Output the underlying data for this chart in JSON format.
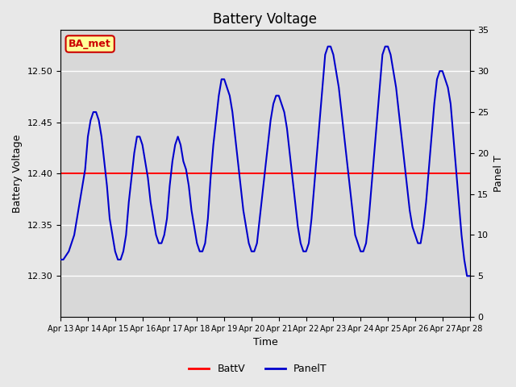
{
  "title": "Battery Voltage",
  "xlabel": "Time",
  "ylabel_left": "Battery Voltage",
  "ylabel_right": "Panel T",
  "ylim_left": [
    12.26,
    12.54
  ],
  "ylim_right": [
    0,
    35
  ],
  "xlim": [
    0,
    15
  ],
  "background_color": "#e8e8e8",
  "plot_bg_color": "#d8d8d8",
  "grid_color": "#ffffff",
  "batt_v_value": 12.4,
  "batt_v_color": "#ff0000",
  "panel_t_color": "#0000cc",
  "x_tick_labels": [
    "Apr 13",
    "Apr 14",
    "Apr 15",
    "Apr 16",
    "Apr 17",
    "Apr 18",
    "Apr 19",
    "Apr 20",
    "Apr 21",
    "Apr 22",
    "Apr 23",
    "Apr 24",
    "Apr 25",
    "Apr 26",
    "Apr 27",
    "Apr 28"
  ],
  "ba_met_bg": "#ffff99",
  "ba_met_border": "#cc0000",
  "ba_met_text": "#cc0000",
  "legend_batt_color": "#ff0000",
  "legend_panel_color": "#0000cc",
  "panel_t_data_x": [
    0,
    0.1,
    0.3,
    0.5,
    0.7,
    0.9,
    1.0,
    1.1,
    1.2,
    1.3,
    1.4,
    1.5,
    1.6,
    1.7,
    1.8,
    1.9,
    2.0,
    2.1,
    2.2,
    2.3,
    2.4,
    2.5,
    2.6,
    2.7,
    2.8,
    2.9,
    3.0,
    3.1,
    3.2,
    3.3,
    3.4,
    3.5,
    3.6,
    3.7,
    3.8,
    3.9,
    4.0,
    4.1,
    4.2,
    4.3,
    4.4,
    4.5,
    4.6,
    4.7,
    4.8,
    4.9,
    5.0,
    5.1,
    5.2,
    5.3,
    5.4,
    5.5,
    5.6,
    5.7,
    5.8,
    5.9,
    6.0,
    6.1,
    6.2,
    6.3,
    6.4,
    6.5,
    6.6,
    6.7,
    6.8,
    6.9,
    7.0,
    7.1,
    7.2,
    7.3,
    7.4,
    7.5,
    7.6,
    7.7,
    7.8,
    7.9,
    8.0,
    8.1,
    8.2,
    8.3,
    8.4,
    8.5,
    8.6,
    8.7,
    8.8,
    8.9,
    9.0,
    9.1,
    9.2,
    9.3,
    9.4,
    9.5,
    9.6,
    9.7,
    9.8,
    9.9,
    10.0,
    10.1,
    10.2,
    10.3,
    10.4,
    10.5,
    10.6,
    10.7,
    10.8,
    10.9,
    11.0,
    11.1,
    11.2,
    11.3,
    11.4,
    11.5,
    11.6,
    11.7,
    11.8,
    11.9,
    12.0,
    12.1,
    12.2,
    12.3,
    12.4,
    12.5,
    12.6,
    12.7,
    12.8,
    12.9,
    13.0,
    13.1,
    13.2,
    13.3,
    13.4,
    13.5,
    13.6,
    13.7,
    13.8,
    13.9,
    14.0,
    14.1,
    14.2,
    14.3,
    14.4,
    14.5,
    14.6,
    14.7,
    14.8,
    14.9,
    15.0
  ],
  "panel_t_data_y": [
    7,
    7,
    8,
    10,
    14,
    18,
    22,
    24,
    25,
    25,
    24,
    22,
    19,
    16,
    12,
    10,
    8,
    7,
    7,
    8,
    10,
    14,
    17,
    20,
    22,
    22,
    21,
    19,
    17,
    14,
    12,
    10,
    9,
    9,
    10,
    12,
    16,
    19,
    21,
    22,
    21,
    19,
    18,
    16,
    13,
    11,
    9,
    8,
    8,
    9,
    12,
    17,
    21,
    24,
    27,
    29,
    29,
    28,
    27,
    25,
    22,
    19,
    16,
    13,
    11,
    9,
    8,
    8,
    9,
    12,
    15,
    18,
    21,
    24,
    26,
    27,
    27,
    26,
    25,
    23,
    20,
    17,
    14,
    11,
    9,
    8,
    8,
    9,
    12,
    16,
    20,
    24,
    28,
    32,
    33,
    33,
    32,
    30,
    28,
    25,
    22,
    19,
    16,
    13,
    10,
    9,
    8,
    8,
    9,
    12,
    16,
    20,
    24,
    28,
    32,
    33,
    33,
    32,
    30,
    28,
    25,
    22,
    19,
    16,
    13,
    11,
    10,
    9,
    9,
    11,
    14,
    18,
    22,
    26,
    29,
    30,
    30,
    29,
    28,
    26,
    22,
    18,
    14,
    10,
    7,
    5,
    5
  ]
}
